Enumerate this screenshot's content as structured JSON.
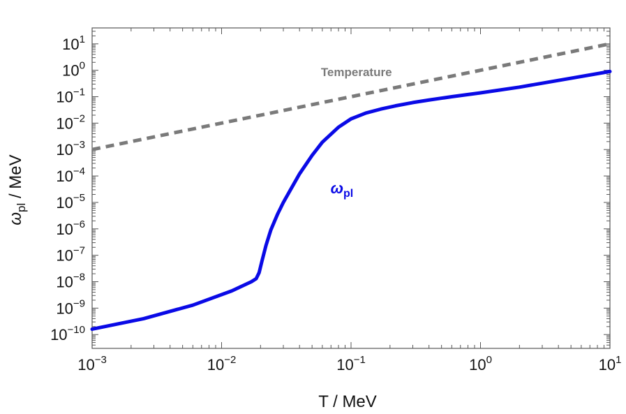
{
  "chart_data": {
    "type": "line",
    "xscale": "log",
    "yscale": "log",
    "xlim": [
      0.001,
      10
    ],
    "ylim": [
      3e-11,
      40
    ],
    "grid": false,
    "xlabel": {
      "base": "T",
      "rest": " / MeV"
    },
    "ylabel": {
      "symbol": "ω",
      "sub": "pl",
      "rest": " / MeV"
    },
    "x_ticks": [
      {
        "value": 0.001,
        "base": "10",
        "exp": "−3"
      },
      {
        "value": 0.01,
        "base": "10",
        "exp": "−2"
      },
      {
        "value": 0.1,
        "base": "10",
        "exp": "−1"
      },
      {
        "value": 1,
        "base": "10",
        "exp": "0"
      },
      {
        "value": 10,
        "base": "10",
        "exp": "1"
      }
    ],
    "y_ticks": [
      {
        "value": 1e-10,
        "base": "10",
        "exp": "−10"
      },
      {
        "value": 1e-09,
        "base": "10",
        "exp": "−9"
      },
      {
        "value": 1e-08,
        "base": "10",
        "exp": "−8"
      },
      {
        "value": 1e-07,
        "base": "10",
        "exp": "−7"
      },
      {
        "value": 1e-06,
        "base": "10",
        "exp": "−6"
      },
      {
        "value": 1e-05,
        "base": "10",
        "exp": "−5"
      },
      {
        "value": 0.0001,
        "base": "10",
        "exp": "−4"
      },
      {
        "value": 0.001,
        "base": "10",
        "exp": "−3"
      },
      {
        "value": 0.01,
        "base": "10",
        "exp": "−2"
      },
      {
        "value": 0.1,
        "base": "10",
        "exp": "−1"
      },
      {
        "value": 1,
        "base": "10",
        "exp": "0"
      },
      {
        "value": 10,
        "base": "10",
        "exp": "1"
      }
    ],
    "series": [
      {
        "key": "temperature",
        "style": "dashed",
        "color": "#7a7a7a",
        "x": [
          0.001,
          10
        ],
        "y": [
          0.001,
          10
        ],
        "label": {
          "text": "Temperature",
          "x": 0.11,
          "y": 0.6
        }
      },
      {
        "key": "omega_pl",
        "style": "solid",
        "color": "#0a0ae6",
        "x": [
          0.001,
          0.0025,
          0.006,
          0.012,
          0.017,
          0.0185,
          0.0195,
          0.0205,
          0.022,
          0.024,
          0.027,
          0.03,
          0.035,
          0.04,
          0.05,
          0.06,
          0.08,
          0.1,
          0.13,
          0.17,
          0.22,
          0.3,
          0.4,
          0.6,
          1,
          2,
          5,
          10
        ],
        "y": [
          1.6e-10,
          4e-10,
          1.3e-09,
          4.5e-09,
          1e-08,
          1.3e-08,
          2.2e-08,
          6e-08,
          2.3e-07,
          9e-07,
          3.5e-06,
          1e-05,
          3.8e-05,
          0.00012,
          0.0006,
          0.0019,
          0.007,
          0.0145,
          0.024,
          0.034,
          0.045,
          0.06,
          0.075,
          0.1,
          0.14,
          0.23,
          0.5,
          0.9
        ],
        "label": {
          "symbol": "ω",
          "sub": "pl",
          "x": 0.085,
          "y": 2.2e-05
        }
      }
    ]
  }
}
